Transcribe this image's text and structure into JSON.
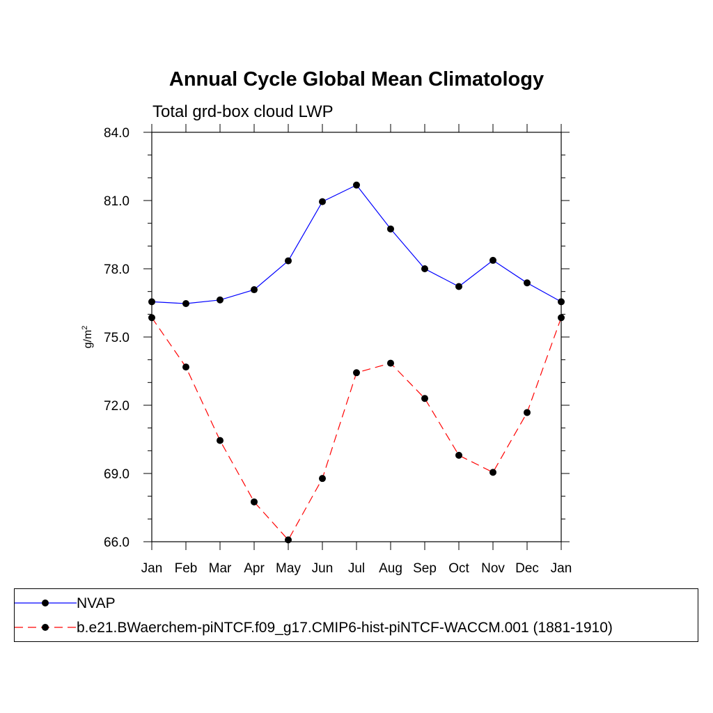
{
  "chart_data": {
    "type": "line",
    "title": "Annual Cycle Global Mean Climatology",
    "subtitle": "Total grd-box cloud LWP",
    "ylabel": "g/m",
    "ylabel_sup": "2",
    "xlabel": "",
    "categories": [
      "Jan",
      "Feb",
      "Mar",
      "Apr",
      "May",
      "Jun",
      "Jul",
      "Aug",
      "Sep",
      "Oct",
      "Nov",
      "Dec",
      "Jan"
    ],
    "ylim": [
      66.0,
      84.0
    ],
    "yticks": [
      "66.0",
      "69.0",
      "72.0",
      "75.0",
      "78.0",
      "81.0",
      "84.0"
    ],
    "grid": false,
    "legend_position": "bottom",
    "series": [
      {
        "name": "NVAP",
        "color": "#0000ff",
        "dash": "solid",
        "marker": "filled-circle",
        "values": [
          76.55,
          76.47,
          76.63,
          77.08,
          78.35,
          80.95,
          81.68,
          79.75,
          78.0,
          77.22,
          78.37,
          77.38,
          76.55
        ]
      },
      {
        "name": "b.e21.BWaerchem-piNTCF.f09_g17.CMIP6-hist-piNTCF-WACCM.001 (1881-1910)",
        "color": "#ff0000",
        "dash": "dashed",
        "marker": "filled-circle",
        "values": [
          75.85,
          73.68,
          70.45,
          67.75,
          66.08,
          68.78,
          73.43,
          73.85,
          72.3,
          69.8,
          69.05,
          71.68,
          75.85
        ]
      }
    ]
  }
}
